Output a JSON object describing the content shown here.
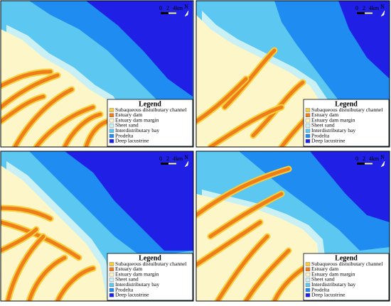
{
  "panels": [
    {
      "scale": [
        "0",
        "2",
        "4km"
      ],
      "north": "N",
      "legend": {
        "title": "Legend",
        "items": [
          "Subaqueous distuibutary channel",
          "Estuary dam",
          "Estuary dam margin",
          "Sheet sand",
          "Interdistributary bay",
          "Prodelta",
          "Deep lacustrine"
        ]
      }
    },
    {
      "scale": [
        "0",
        "2",
        "4km"
      ],
      "north": "N",
      "legend": {
        "title": "Legend",
        "items": [
          "Subaqueous distuibutary channel",
          "Estuary dam",
          "Estuary dam margin",
          "Sheet sand",
          "Interdistributary bay",
          "Prodelta",
          "Deep lacustrine"
        ]
      }
    },
    {
      "scale": [
        "0",
        "2",
        "4km"
      ],
      "north": "N",
      "legend": {
        "title": "Legend",
        "items": [
          "Subaqueous distuibutary channel",
          "Estuary dam",
          "Estuary dam margin",
          "Sheet sand",
          "Interdistributary bay",
          "Prodelta",
          "Deep lacustrine"
        ]
      }
    },
    {
      "scale": [
        "0",
        "2",
        "4km"
      ],
      "north": "N",
      "legend": {
        "title": "Legend",
        "items": [
          "Subaqueous distuibutary channel",
          "Estuary dam",
          "Estuary dam margin",
          "Sheet sand",
          "Interdistributary bay",
          "Prodelta",
          "Deep lacustrine"
        ]
      }
    }
  ]
}
